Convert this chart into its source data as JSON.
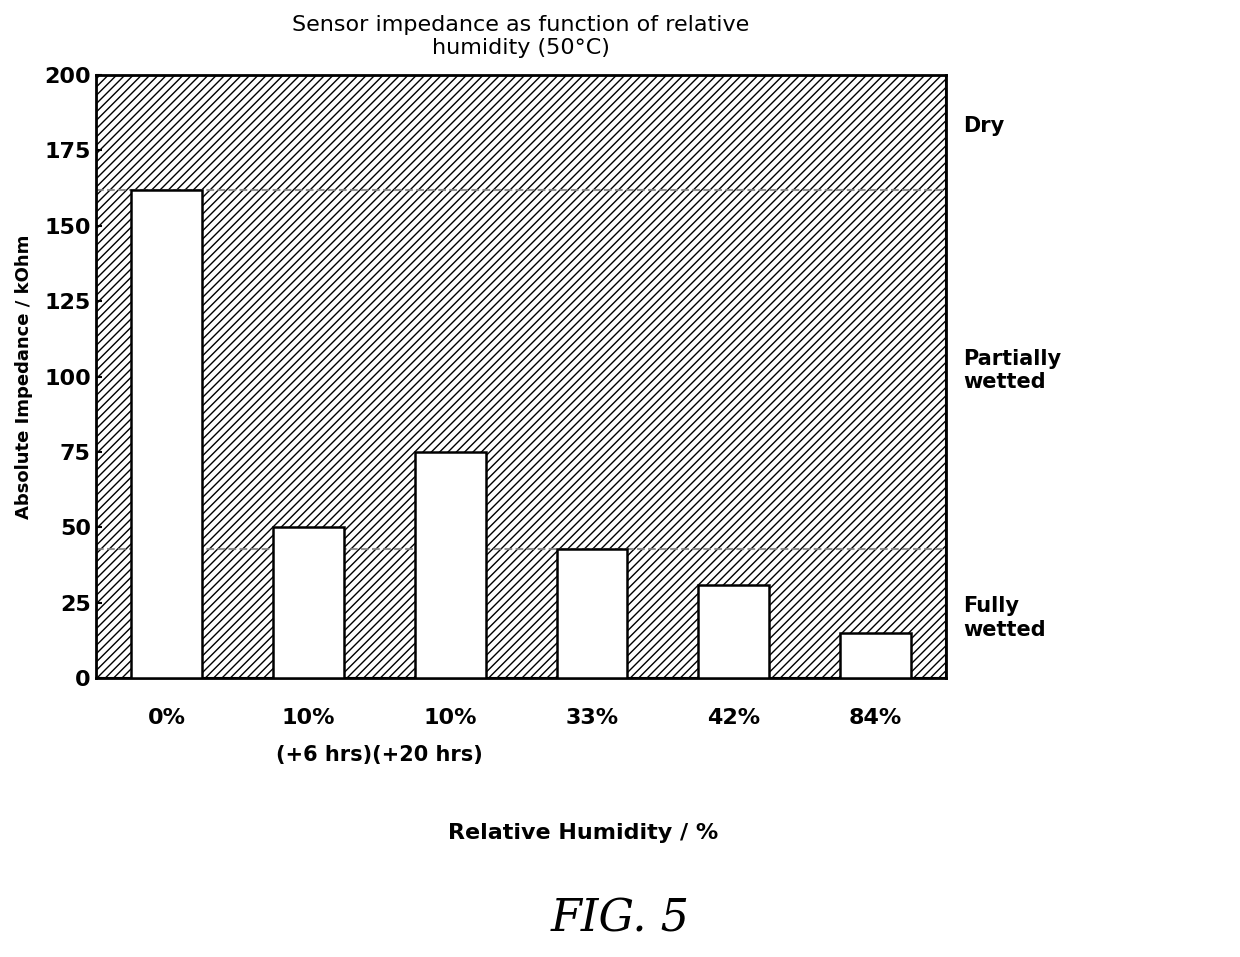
{
  "title": "Sensor impedance as function of relative\nhumidity (50°C)",
  "xlabel": "Relative Humidity / %",
  "ylabel": "Absolute Impedance / kOhm",
  "ylim": [
    0,
    200
  ],
  "yticks": [
    0,
    25,
    50,
    75,
    100,
    125,
    150,
    175,
    200
  ],
  "categories": [
    "0%",
    "10%",
    "10%",
    "33%",
    "42%",
    "84%"
  ],
  "sub_labels": [
    "",
    "(+6 hrs)",
    "(+20 hrs)",
    "",
    "",
    ""
  ],
  "values": [
    162,
    50,
    75,
    43,
    31,
    15
  ],
  "bar_color": "#ffffff",
  "bar_edgecolor": "#000000",
  "dashed_lines": [
    162,
    43
  ],
  "zone_labels": [
    {
      "text": "Dry",
      "y": 183,
      "fontsize": 15
    },
    {
      "text": "Partially\nwetted",
      "y": 102,
      "fontsize": 15
    },
    {
      "text": "Fully\nwetted",
      "y": 20,
      "fontsize": 15
    }
  ],
  "title_fontsize": 16,
  "xlabel_fontsize": 16,
  "ylabel_fontsize": 13,
  "tick_fontsize": 16,
  "background_color": "#ffffff",
  "fig_caption": "FIG. 5"
}
